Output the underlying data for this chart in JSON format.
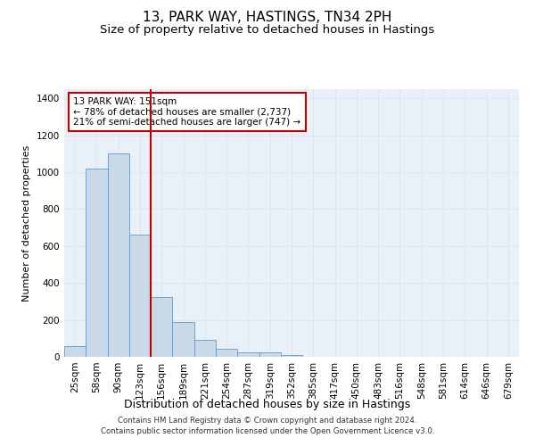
{
  "title_line1": "13, PARK WAY, HASTINGS, TN34 2PH",
  "title_line2": "Size of property relative to detached houses in Hastings",
  "xlabel": "Distribution of detached houses by size in Hastings",
  "ylabel": "Number of detached properties",
  "footnote": "Contains HM Land Registry data © Crown copyright and database right 2024.\nContains public sector information licensed under the Open Government Licence v3.0.",
  "bin_labels": [
    "25sqm",
    "58sqm",
    "90sqm",
    "123sqm",
    "156sqm",
    "189sqm",
    "221sqm",
    "254sqm",
    "287sqm",
    "319sqm",
    "352sqm",
    "385sqm",
    "417sqm",
    "450sqm",
    "483sqm",
    "516sqm",
    "548sqm",
    "581sqm",
    "614sqm",
    "646sqm",
    "679sqm"
  ],
  "bar_values": [
    60,
    1020,
    1100,
    660,
    325,
    190,
    90,
    45,
    25,
    22,
    12,
    0,
    0,
    0,
    0,
    0,
    0,
    0,
    0,
    0,
    0
  ],
  "bar_color": "#c9d9e8",
  "bar_edge_color": "#5b9bd5",
  "vline_x_index": 4,
  "vline_color": "#c00000",
  "annotation_text": "13 PARK WAY: 151sqm\n← 78% of detached houses are smaller (2,737)\n21% of semi-detached houses are larger (747) →",
  "annotation_box_color": "#ffffff",
  "annotation_box_edge": "#c00000",
  "ylim": [
    0,
    1450
  ],
  "yticks": [
    0,
    200,
    400,
    600,
    800,
    1000,
    1200,
    1400
  ],
  "grid_color": "#dce6f1",
  "bg_color": "#eaf0f8",
  "title1_fontsize": 11,
  "title2_fontsize": 9.5,
  "tick_fontsize": 7.5,
  "ylabel_fontsize": 8,
  "xlabel_fontsize": 9,
  "annot_fontsize": 7.5
}
